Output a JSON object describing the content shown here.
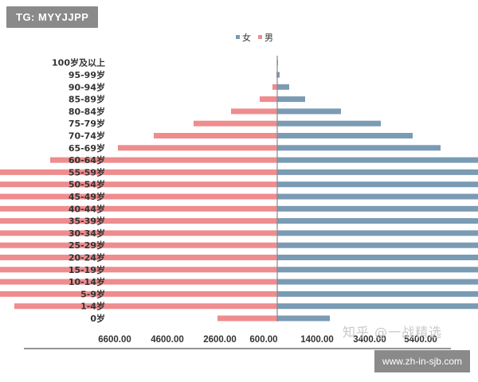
{
  "overlays": {
    "tag_top": "TG: MYYJJPP",
    "tag_bottom": "www.zh-in-sjb.com",
    "watermark": "知乎 @一战精选"
  },
  "colors": {
    "female": "#7a9bb4",
    "male": "#ee8c8e",
    "axis": "#555555",
    "text": "#333333"
  },
  "chart_data": {
    "type": "bar",
    "orientation": "horizontal",
    "layout": "population-pyramid",
    "categories": [
      "0岁",
      "1-4岁",
      "5-9岁",
      "10-14岁",
      "15-19岁",
      "20-24岁",
      "25-29岁",
      "30-34岁",
      "35-39岁",
      "40-44岁",
      "45-49岁",
      "50-54岁",
      "55-59岁",
      "60-64岁",
      "65-69岁",
      "70-74岁",
      "75-79岁",
      "80-84岁",
      "85-89岁",
      "90-94岁",
      "95-99岁",
      "100岁及以上"
    ],
    "series": [
      {
        "name": "女",
        "side": "right",
        "color": "#7a9bb4",
        "values": [
          660,
          2800,
          3300,
          3600,
          4900,
          6300,
          5100,
          4900,
          5900,
          6250,
          5300,
          3900,
          4100,
          2950,
          2050,
          1700,
          1300,
          800,
          350,
          150,
          30,
          10
        ]
      },
      {
        "name": "男",
        "side": "left",
        "color": "#ee8c8e",
        "values": [
          750,
          3300,
          3750,
          3850,
          5000,
          6300,
          5000,
          4850,
          5850,
          6200,
          5300,
          3850,
          3950,
          2850,
          2000,
          1550,
          1050,
          580,
          220,
          60,
          10,
          5
        ]
      }
    ],
    "xaxis": {
      "tick_labels": [
        "6600.00",
        "4600.00",
        "2600.00",
        "600.00",
        "1400.00",
        "3400.00",
        "5400.00"
      ]
    },
    "grid": false,
    "legend_position": "top-center"
  }
}
